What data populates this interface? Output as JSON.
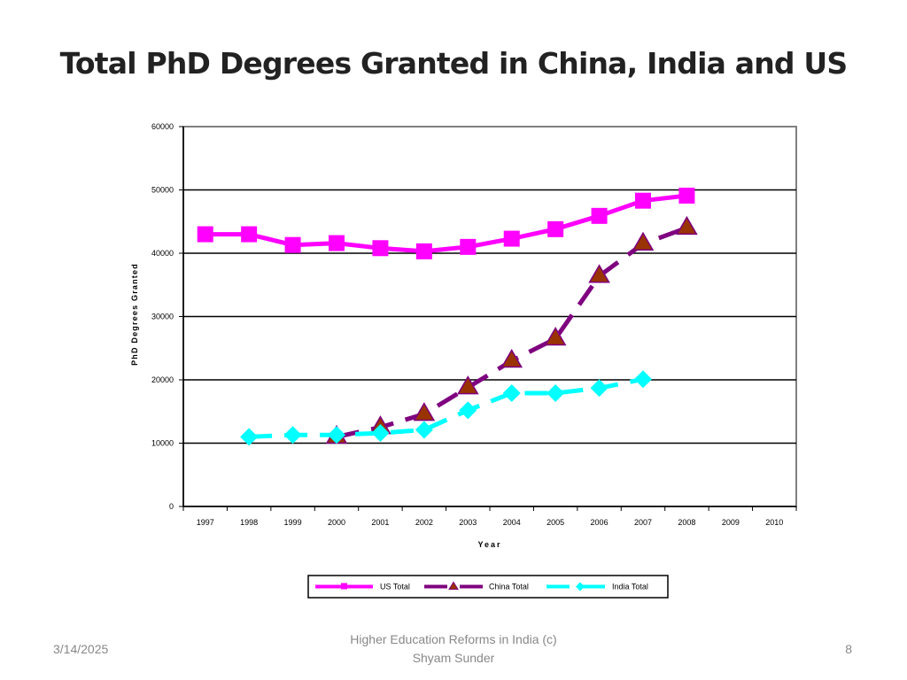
{
  "slide": {
    "title": "Total PhD Degrees Granted in China, India and US",
    "footer_date": "3/14/2025",
    "footer_center_line1": "Higher Education Reforms in India (c)",
    "footer_center_line2": "Shyam Sunder",
    "page_number": "8"
  },
  "chart_data": {
    "type": "line",
    "title": "",
    "xlabel": "Year",
    "ylabel": "PhD Degrees Granted",
    "categories": [
      "1997",
      "1998",
      "1999",
      "2000",
      "2001",
      "2002",
      "2003",
      "2004",
      "2005",
      "2006",
      "2007",
      "2008",
      "2009",
      "2010"
    ],
    "ylim": [
      0,
      60000
    ],
    "yticks": [
      0,
      10000,
      20000,
      30000,
      40000,
      50000,
      60000
    ],
    "grid": true,
    "legend_position": "bottom",
    "series": [
      {
        "name": "US Total",
        "color": "#ff00ff",
        "marker": "square",
        "dash": "solid",
        "values": [
          43000,
          43000,
          41300,
          41600,
          40800,
          40300,
          41000,
          42300,
          43800,
          45900,
          48300,
          49100,
          null,
          null
        ]
      },
      {
        "name": "China Total",
        "color": "#7f007f",
        "marker": "triangle",
        "marker_fill": "#993300",
        "dash": "dashed",
        "values": [
          null,
          null,
          null,
          11000,
          12500,
          14600,
          18800,
          23000,
          26500,
          36400,
          41500,
          44000,
          null,
          null
        ]
      },
      {
        "name": "India Total",
        "color": "#00ffff",
        "marker": "diamond",
        "dash": "dashed",
        "values": [
          null,
          11000,
          11300,
          11300,
          11600,
          12100,
          15200,
          17900,
          17900,
          18700,
          20100,
          null,
          null,
          null
        ]
      }
    ]
  }
}
